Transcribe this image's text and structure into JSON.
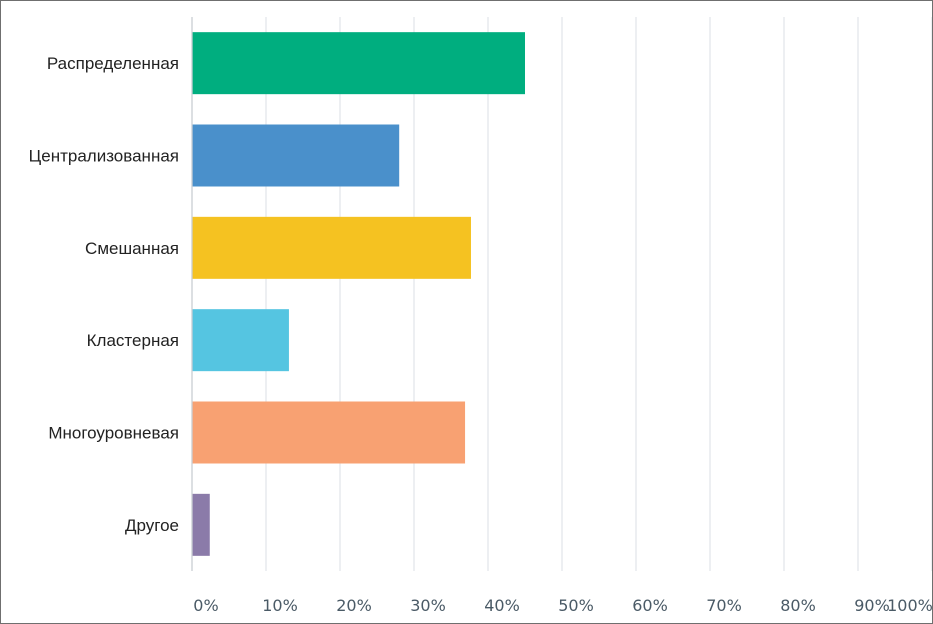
{
  "chart_data": {
    "type": "bar",
    "orientation": "horizontal",
    "categories": [
      "Распределенная",
      "Централизованная",
      "Смешанная",
      "Кластерная",
      "Многоуровневая",
      "Другое"
    ],
    "values": [
      45,
      28,
      37.7,
      13.1,
      36.9,
      2.4
    ],
    "colors": [
      "#00ae7f",
      "#4a90cb",
      "#f5c221",
      "#55c5e1",
      "#f8a172",
      "#8b7ba9"
    ],
    "xticks": [
      "0%",
      "10%",
      "20%",
      "30%",
      "40%",
      "50%",
      "60%",
      "70%",
      "80%",
      "90%",
      "100%"
    ],
    "xlim": [
      0,
      100
    ],
    "grid": true,
    "title": "",
    "xlabel": "",
    "ylabel": ""
  }
}
